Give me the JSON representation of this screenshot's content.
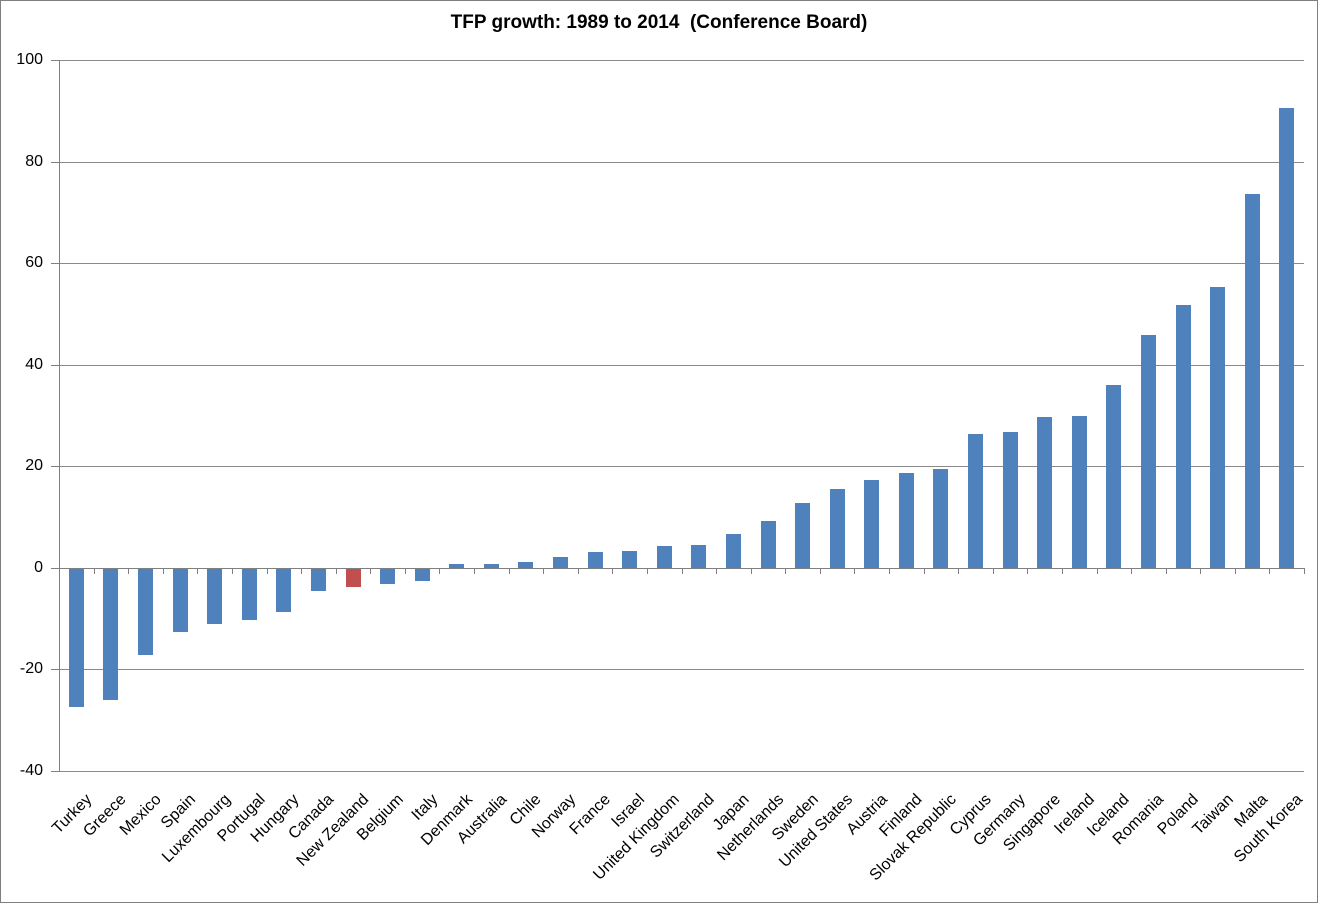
{
  "chart_data": {
    "type": "bar",
    "title": "TFP growth: 1989 to 2014  (Conference Board)",
    "categories": [
      "Turkey",
      "Greece",
      "Mexico",
      "Spain",
      "Luxembourg",
      "Portugal",
      "Hungary",
      "Canada",
      "New Zealand",
      "Belgium",
      "Italy",
      "Denmark",
      "Australia",
      "Chile",
      "Norway",
      "France",
      "Israel",
      "United Kingdom",
      "Switzerland",
      "Japan",
      "Netherlands",
      "Sweden",
      "United States",
      "Austria",
      "Finland",
      "Slovak Republic",
      "Cyprus",
      "Germany",
      "Singapore",
      "Ireland",
      "Iceland",
      "Romania",
      "Poland",
      "Taiwan",
      "Malta",
      "South Korea"
    ],
    "values": [
      -27.2,
      -25.8,
      -17.0,
      -12.5,
      -10.9,
      -10.0,
      -8.5,
      -4.3,
      -3.5,
      -3.0,
      -2.4,
      0.7,
      0.8,
      1.2,
      2.1,
      3.1,
      3.3,
      4.3,
      4.6,
      6.7,
      9.2,
      12.8,
      15.5,
      17.3,
      18.6,
      19.5,
      26.4,
      26.8,
      29.8,
      29.9,
      36.0,
      45.8,
      51.7,
      55.3,
      73.6,
      90.5
    ],
    "xlabel": "",
    "ylabel": "",
    "ylim": [
      -40,
      100
    ],
    "yticks": [
      -40,
      -20,
      0,
      20,
      40,
      60,
      80,
      100
    ],
    "grid": true,
    "legend": "none",
    "x_tick_label_rotation_deg": 45,
    "bar_color": "#4F81BD",
    "highlight": {
      "category": "New Zealand",
      "index": 8,
      "color": "#C0504D"
    },
    "gridline_color": "#8A8A8A",
    "axis_color": "#7F7F7F",
    "text_color": "#000000",
    "background_color": "#FFFFFF"
  }
}
